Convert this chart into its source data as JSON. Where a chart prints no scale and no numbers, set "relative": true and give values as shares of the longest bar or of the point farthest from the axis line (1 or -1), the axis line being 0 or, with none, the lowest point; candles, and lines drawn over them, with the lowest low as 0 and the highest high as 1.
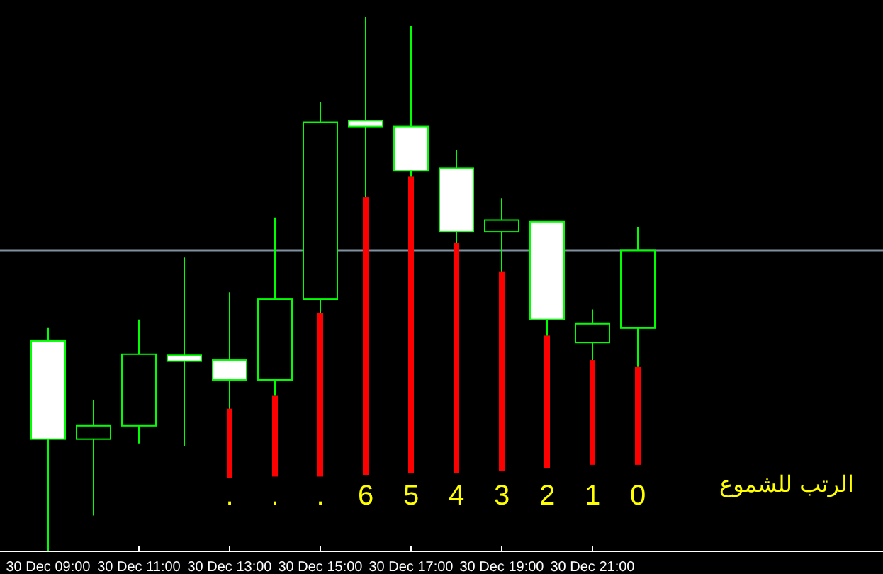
{
  "chart_data": {
    "type": "candlestick",
    "relative": true,
    "categories": [
      "30 Dec 09:00",
      null,
      "30 Dec 11:00",
      null,
      "30 Dec 13:00",
      null,
      "30 Dec 15:00",
      null,
      "30 Dec 17:00",
      null,
      "30 Dec 19:00",
      null,
      "30 Dec 21:00",
      null
    ],
    "ohlc": [
      [
        0.394,
        0.418,
        0,
        0.21
      ],
      [
        0.21,
        0.283,
        0.067,
        0.235
      ],
      [
        0.235,
        0.434,
        0.202,
        0.369
      ],
      [
        0.367,
        0.55,
        0.197,
        0.356
      ],
      [
        0.358,
        0.485,
        0.267,
        0.321
      ],
      [
        0.321,
        0.625,
        0.291,
        0.472
      ],
      [
        0.472,
        0.841,
        0.447,
        0.803
      ],
      [
        0.806,
        1,
        0.663,
        0.795
      ],
      [
        0.795,
        0.984,
        0.701,
        0.712
      ],
      [
        0.717,
        0.752,
        0.577,
        0.598
      ],
      [
        0.598,
        0.66,
        0.523,
        0.62
      ],
      [
        0.617,
        0.617,
        0.404,
        0.434
      ],
      [
        0.391,
        0.453,
        0.358,
        0.426
      ],
      [
        0.418,
        0.606,
        0.345,
        0.563
      ]
    ],
    "series": [
      {
        "type": "bar",
        "color": "#ff0000",
        "base": [
          null,
          null,
          null,
          null,
          0.137,
          0.14,
          0.14,
          0.143,
          0.146,
          0.146,
          0.151,
          0.156,
          0.162,
          0.162
        ],
        "values": [
          null,
          null,
          null,
          null,
          0.13,
          0.151,
          0.307,
          0.52,
          0.555,
          0.431,
          0.372,
          0.248,
          0.196,
          0.183
        ]
      }
    ],
    "ref_lines": [
      {
        "axis": "y",
        "value": 0.563,
        "color": "#8090a0"
      }
    ],
    "annotations": [
      ".",
      ".",
      ".",
      "6",
      "5",
      "4",
      "3",
      "2",
      "1",
      "0",
      "الرتب للشموع"
    ]
  }
}
